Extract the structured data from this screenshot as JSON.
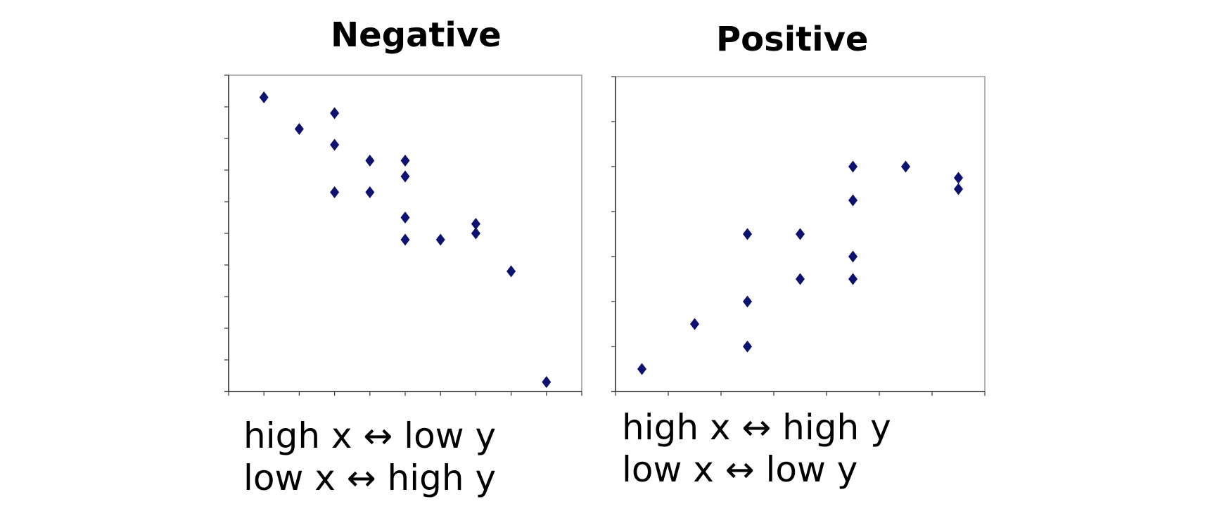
{
  "chart_data": [
    {
      "type": "scatter",
      "title": "Negative",
      "marker_color": "#0d1170",
      "xlim": [
        0,
        10
      ],
      "ylim": [
        0,
        10
      ],
      "grid": false,
      "points": [
        [
          1,
          9.3
        ],
        [
          2,
          8.3
        ],
        [
          3,
          8.8
        ],
        [
          3,
          7.8
        ],
        [
          3,
          6.3
        ],
        [
          4,
          7.3
        ],
        [
          4,
          6.3
        ],
        [
          5,
          7.3
        ],
        [
          5,
          6.8
        ],
        [
          5,
          5.5
        ],
        [
          5,
          4.8
        ],
        [
          6,
          4.8
        ],
        [
          7,
          5.3
        ],
        [
          7,
          5.0
        ],
        [
          8,
          3.8
        ],
        [
          9,
          0.3
        ]
      ],
      "caption_lines": [
        "high x ↔ low y",
        "low x ↔ high y"
      ]
    },
    {
      "type": "scatter",
      "title": "Positive",
      "marker_color": "#0d1170",
      "xlim": [
        0,
        7
      ],
      "ylim": [
        0,
        7
      ],
      "grid": false,
      "points": [
        [
          0.5,
          0.5
        ],
        [
          1.5,
          1.5
        ],
        [
          2.5,
          1.0
        ],
        [
          2.5,
          2.0
        ],
        [
          2.5,
          3.5
        ],
        [
          3.5,
          2.5
        ],
        [
          3.5,
          3.5
        ],
        [
          4.5,
          2.5
        ],
        [
          4.5,
          3.0
        ],
        [
          4.5,
          4.25
        ],
        [
          4.5,
          5.0
        ],
        [
          5.5,
          5.0
        ],
        [
          6.5,
          4.5
        ],
        [
          6.5,
          4.75
        ]
      ],
      "caption_lines": [
        "high x ↔ high y",
        "low x ↔ low y"
      ]
    }
  ]
}
